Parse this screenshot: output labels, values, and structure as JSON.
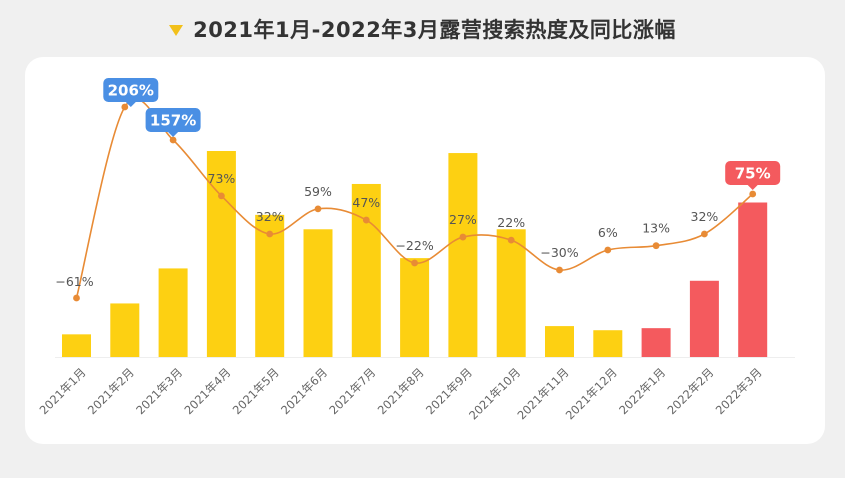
{
  "title": "2021年1月-2022年3月露营搜索热度及同比涨幅",
  "colors": {
    "bar_2021": "#fdd012",
    "bar_2022": "#f45a5e",
    "line": "#e88b35",
    "badge_blue": "#4a8fe4",
    "badge_red": "#f45a5e",
    "label_text": "#555555",
    "axis_text": "#666666"
  },
  "chart_data": {
    "type": "bar+line",
    "title": "2021年1月-2022年3月露营搜索热度及同比涨幅",
    "categories": [
      "2021年1月",
      "2021年2月",
      "2021年3月",
      "2021年4月",
      "2021年5月",
      "2021年6月",
      "2021年7月",
      "2021年8月",
      "2021年9月",
      "2021年10月",
      "2021年11月",
      "2021年12月",
      "2022年1月",
      "2022年2月",
      "2022年3月"
    ],
    "series": [
      {
        "name": "露营搜索热度",
        "type": "bar",
        "values": [
          11,
          26,
          43,
          100,
          69,
          62,
          84,
          48,
          99,
          62,
          15,
          13,
          14,
          37,
          75
        ]
      },
      {
        "name": "同比涨幅",
        "type": "line",
        "unit": "%",
        "values": [
          -61,
          206,
          157,
          73,
          32,
          59,
          47,
          -22,
          27,
          22,
          -30,
          6,
          13,
          32,
          75
        ],
        "labels": [
          "−61%",
          "206%",
          "157%",
          "73%",
          "32%",
          "59%",
          "47%",
          "−22%",
          "27%",
          "22%",
          "−30%",
          "6%",
          "13%",
          "32%",
          "75%"
        ],
        "highlighted": [
          1,
          2,
          14
        ]
      }
    ],
    "bar_ylim": [
      0,
      100
    ],
    "xlabel": "",
    "ylabel": ""
  }
}
